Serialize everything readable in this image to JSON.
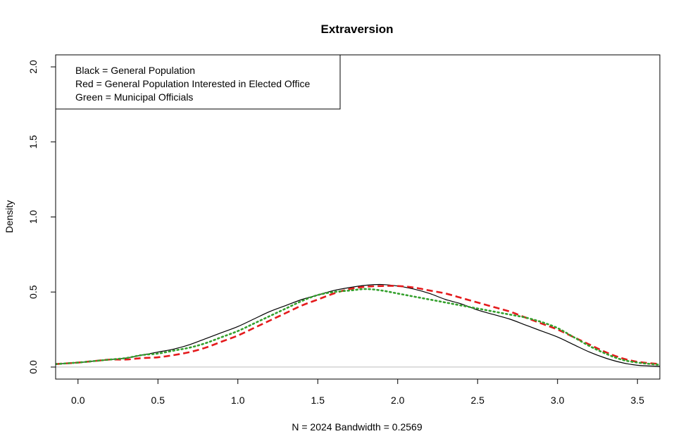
{
  "chart_data": {
    "type": "line",
    "title": "Extraversion",
    "xlabel": "N = 2024   Bandwidth = 0.2569",
    "ylabel": "Density",
    "xlim": [
      -0.14,
      3.64
    ],
    "ylim": [
      -0.08,
      2.08
    ],
    "x_ticks": [
      0.0,
      0.5,
      1.0,
      1.5,
      2.0,
      2.5,
      3.0,
      3.5
    ],
    "x_tick_labels": [
      "0.0",
      "0.5",
      "1.0",
      "1.5",
      "2.0",
      "2.5",
      "3.0",
      "3.5"
    ],
    "y_ticks": [
      0.0,
      0.5,
      1.0,
      1.5,
      2.0
    ],
    "y_tick_labels": [
      "0.0",
      "0.5",
      "1.0",
      "1.5",
      "2.0"
    ],
    "baseline": 0,
    "legend": {
      "placement": "top-left",
      "entries": [
        "Black = General Population",
        "Red = General Population Interested in Elected Office",
        "Green = Municipal Officials"
      ]
    },
    "series": [
      {
        "color": "#000000",
        "style": "solid",
        "x": [
          -0.14,
          0.0,
          0.1,
          0.2,
          0.3,
          0.4,
          0.5,
          0.6,
          0.7,
          0.8,
          0.9,
          1.0,
          1.1,
          1.2,
          1.3,
          1.4,
          1.5,
          1.6,
          1.7,
          1.8,
          1.9,
          2.0,
          2.1,
          2.2,
          2.3,
          2.4,
          2.5,
          2.6,
          2.7,
          2.8,
          2.9,
          3.0,
          3.1,
          3.2,
          3.3,
          3.4,
          3.5,
          3.64
        ],
        "values": [
          0.02,
          0.03,
          0.04,
          0.05,
          0.06,
          0.08,
          0.1,
          0.12,
          0.15,
          0.19,
          0.23,
          0.27,
          0.32,
          0.37,
          0.41,
          0.45,
          0.48,
          0.51,
          0.53,
          0.545,
          0.55,
          0.54,
          0.52,
          0.49,
          0.45,
          0.42,
          0.38,
          0.35,
          0.32,
          0.28,
          0.24,
          0.2,
          0.15,
          0.1,
          0.06,
          0.03,
          0.012,
          0.005
        ]
      },
      {
        "color": "#e41a1c",
        "style": "dashed",
        "x": [
          -0.14,
          0.0,
          0.1,
          0.2,
          0.3,
          0.4,
          0.5,
          0.6,
          0.7,
          0.8,
          0.9,
          1.0,
          1.1,
          1.2,
          1.3,
          1.4,
          1.5,
          1.6,
          1.7,
          1.8,
          1.9,
          2.0,
          2.1,
          2.2,
          2.3,
          2.4,
          2.5,
          2.6,
          2.7,
          2.8,
          2.9,
          3.0,
          3.1,
          3.2,
          3.3,
          3.4,
          3.5,
          3.64
        ],
        "values": [
          0.02,
          0.03,
          0.04,
          0.05,
          0.05,
          0.06,
          0.065,
          0.08,
          0.1,
          0.13,
          0.17,
          0.21,
          0.26,
          0.31,
          0.36,
          0.41,
          0.45,
          0.49,
          0.52,
          0.535,
          0.54,
          0.54,
          0.53,
          0.51,
          0.49,
          0.46,
          0.43,
          0.4,
          0.37,
          0.33,
          0.29,
          0.25,
          0.2,
          0.15,
          0.1,
          0.06,
          0.035,
          0.02
        ]
      },
      {
        "color": "#33a02c",
        "style": "dotted",
        "x": [
          -0.14,
          0.0,
          0.1,
          0.2,
          0.3,
          0.4,
          0.5,
          0.6,
          0.7,
          0.8,
          0.9,
          1.0,
          1.1,
          1.2,
          1.3,
          1.4,
          1.5,
          1.6,
          1.7,
          1.8,
          1.9,
          2.0,
          2.1,
          2.2,
          2.3,
          2.4,
          2.5,
          2.6,
          2.7,
          2.8,
          2.9,
          3.0,
          3.1,
          3.2,
          3.3,
          3.4,
          3.5,
          3.64
        ],
        "values": [
          0.02,
          0.03,
          0.04,
          0.05,
          0.06,
          0.08,
          0.09,
          0.11,
          0.13,
          0.16,
          0.2,
          0.24,
          0.29,
          0.34,
          0.39,
          0.44,
          0.48,
          0.5,
          0.51,
          0.52,
          0.51,
          0.49,
          0.47,
          0.45,
          0.43,
          0.41,
          0.39,
          0.37,
          0.35,
          0.33,
          0.3,
          0.26,
          0.2,
          0.14,
          0.09,
          0.05,
          0.03,
          0.015
        ]
      }
    ]
  }
}
